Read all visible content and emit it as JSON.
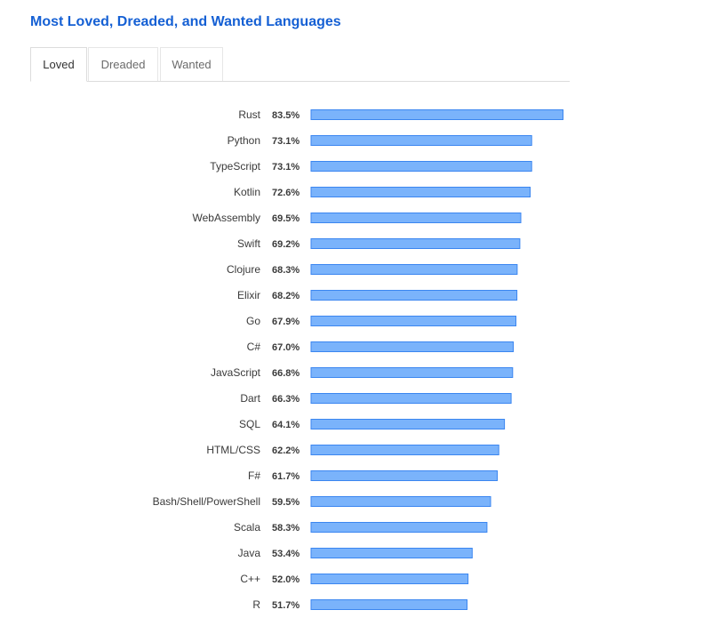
{
  "header": {
    "title": "Most Loved, Dreaded, and Wanted Languages"
  },
  "tabs": [
    {
      "label": "Loved",
      "active": true
    },
    {
      "label": "Dreaded",
      "active": false
    },
    {
      "label": "Wanted",
      "active": false
    }
  ],
  "colors": {
    "title": "#1560d4",
    "bar_fill": "#7ab3fb",
    "bar_stroke": "#3b86f0",
    "label": "#3a3a3a"
  },
  "chart_data": {
    "type": "bar",
    "orientation": "horizontal",
    "value_suffix": "%",
    "xlim": [
      0,
      100
    ],
    "grid": false,
    "categories": [
      "Rust",
      "Python",
      "TypeScript",
      "Kotlin",
      "WebAssembly",
      "Swift",
      "Clojure",
      "Elixir",
      "Go",
      "C#",
      "JavaScript",
      "Dart",
      "SQL",
      "HTML/CSS",
      "F#",
      "Bash/Shell/PowerShell",
      "Scala",
      "Java",
      "C++",
      "R"
    ],
    "values": [
      83.5,
      73.1,
      73.1,
      72.6,
      69.5,
      69.2,
      68.3,
      68.2,
      67.9,
      67.0,
      66.8,
      66.3,
      64.1,
      62.2,
      61.7,
      59.5,
      58.3,
      53.4,
      52.0,
      51.7
    ]
  }
}
